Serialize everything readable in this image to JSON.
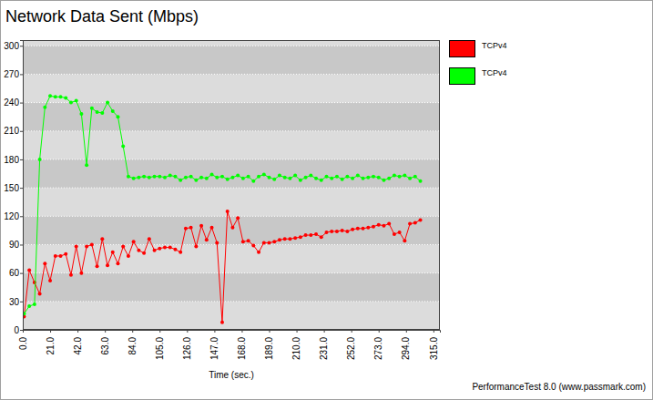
{
  "chart_data": {
    "type": "line",
    "title": "Network Data Sent (Mbps)",
    "x_label": "Time (sec.)",
    "annotations": [
      "PerformanceTest 8.0 (www.passmark.com)"
    ],
    "x": [
      1,
      5,
      9,
      13,
      17,
      21,
      25,
      29,
      33,
      37,
      41,
      45,
      49,
      53,
      57,
      61,
      65,
      69,
      73,
      77,
      81,
      85,
      89,
      93,
      97,
      101,
      105,
      109,
      113,
      117,
      121,
      125,
      129,
      133,
      137,
      141,
      145,
      149,
      153,
      157,
      161,
      165,
      169,
      173,
      177,
      181,
      185,
      189,
      193,
      197,
      201,
      205,
      209,
      213,
      217,
      221,
      225,
      229,
      233,
      237,
      241,
      245,
      249,
      253,
      257,
      261,
      265,
      269,
      273,
      277,
      281,
      285,
      289,
      293,
      297,
      301,
      305
    ],
    "series": [
      {
        "name": "TCPv4",
        "color": "#ff0000",
        "marker": "circle",
        "values": [
          14,
          63,
          50,
          38,
          70,
          52,
          78,
          78,
          80,
          58,
          88,
          60,
          88,
          90,
          67,
          96,
          68,
          82,
          70,
          88,
          78,
          93,
          84,
          81,
          96,
          84,
          86,
          87,
          87,
          85,
          82,
          107,
          108,
          88,
          110,
          95,
          108,
          92,
          8,
          125,
          108,
          118,
          93,
          94,
          89,
          82,
          92,
          92,
          93,
          95,
          96,
          96,
          97,
          98,
          100,
          100,
          101,
          98,
          103,
          104,
          104,
          105,
          104,
          106,
          107,
          107,
          108,
          109,
          111,
          110,
          112,
          101,
          103,
          94,
          112,
          113,
          116
        ]
      },
      {
        "name": "TCPv4",
        "color": "#00ff00",
        "marker": "circle",
        "values": [
          17,
          25,
          27,
          180,
          235,
          247,
          246,
          246,
          245,
          240,
          242,
          228,
          174,
          234,
          230,
          229,
          240,
          231,
          225,
          194,
          162,
          160,
          161,
          162,
          161,
          162,
          162,
          161,
          163,
          162,
          158,
          161,
          162,
          158,
          161,
          160,
          164,
          161,
          162,
          159,
          161,
          163,
          160,
          162,
          157,
          162,
          164,
          161,
          159,
          163,
          161,
          160,
          163,
          158,
          161,
          163,
          160,
          158,
          162,
          160,
          162,
          159,
          162,
          160,
          163,
          160,
          161,
          162,
          161,
          158,
          160,
          163,
          162,
          163,
          160,
          162,
          157
        ]
      }
    ],
    "xlim": [
      0,
      320
    ],
    "xticks": [
      {
        "value": 0,
        "label": "0.0"
      },
      {
        "value": 21,
        "label": "21.0"
      },
      {
        "value": 42,
        "label": "42.0"
      },
      {
        "value": 63,
        "label": "63.0"
      },
      {
        "value": 84,
        "label": "84.0"
      },
      {
        "value": 105,
        "label": "105.0"
      },
      {
        "value": 126,
        "label": "126.0"
      },
      {
        "value": 147,
        "label": "147.0"
      },
      {
        "value": 168,
        "label": "168.0"
      },
      {
        "value": 189,
        "label": "189.0"
      },
      {
        "value": 210,
        "label": "210.0"
      },
      {
        "value": 231,
        "label": "231.0"
      },
      {
        "value": 252,
        "label": "252.0"
      },
      {
        "value": 273,
        "label": "273.0"
      },
      {
        "value": 294,
        "label": "294.0"
      },
      {
        "value": 315,
        "label": "315.0"
      }
    ],
    "ylim": [
      0,
      306
    ],
    "yticks": [
      0,
      30,
      60,
      90,
      120,
      150,
      180,
      210,
      240,
      270,
      300
    ],
    "grid": true,
    "legend": "right"
  }
}
